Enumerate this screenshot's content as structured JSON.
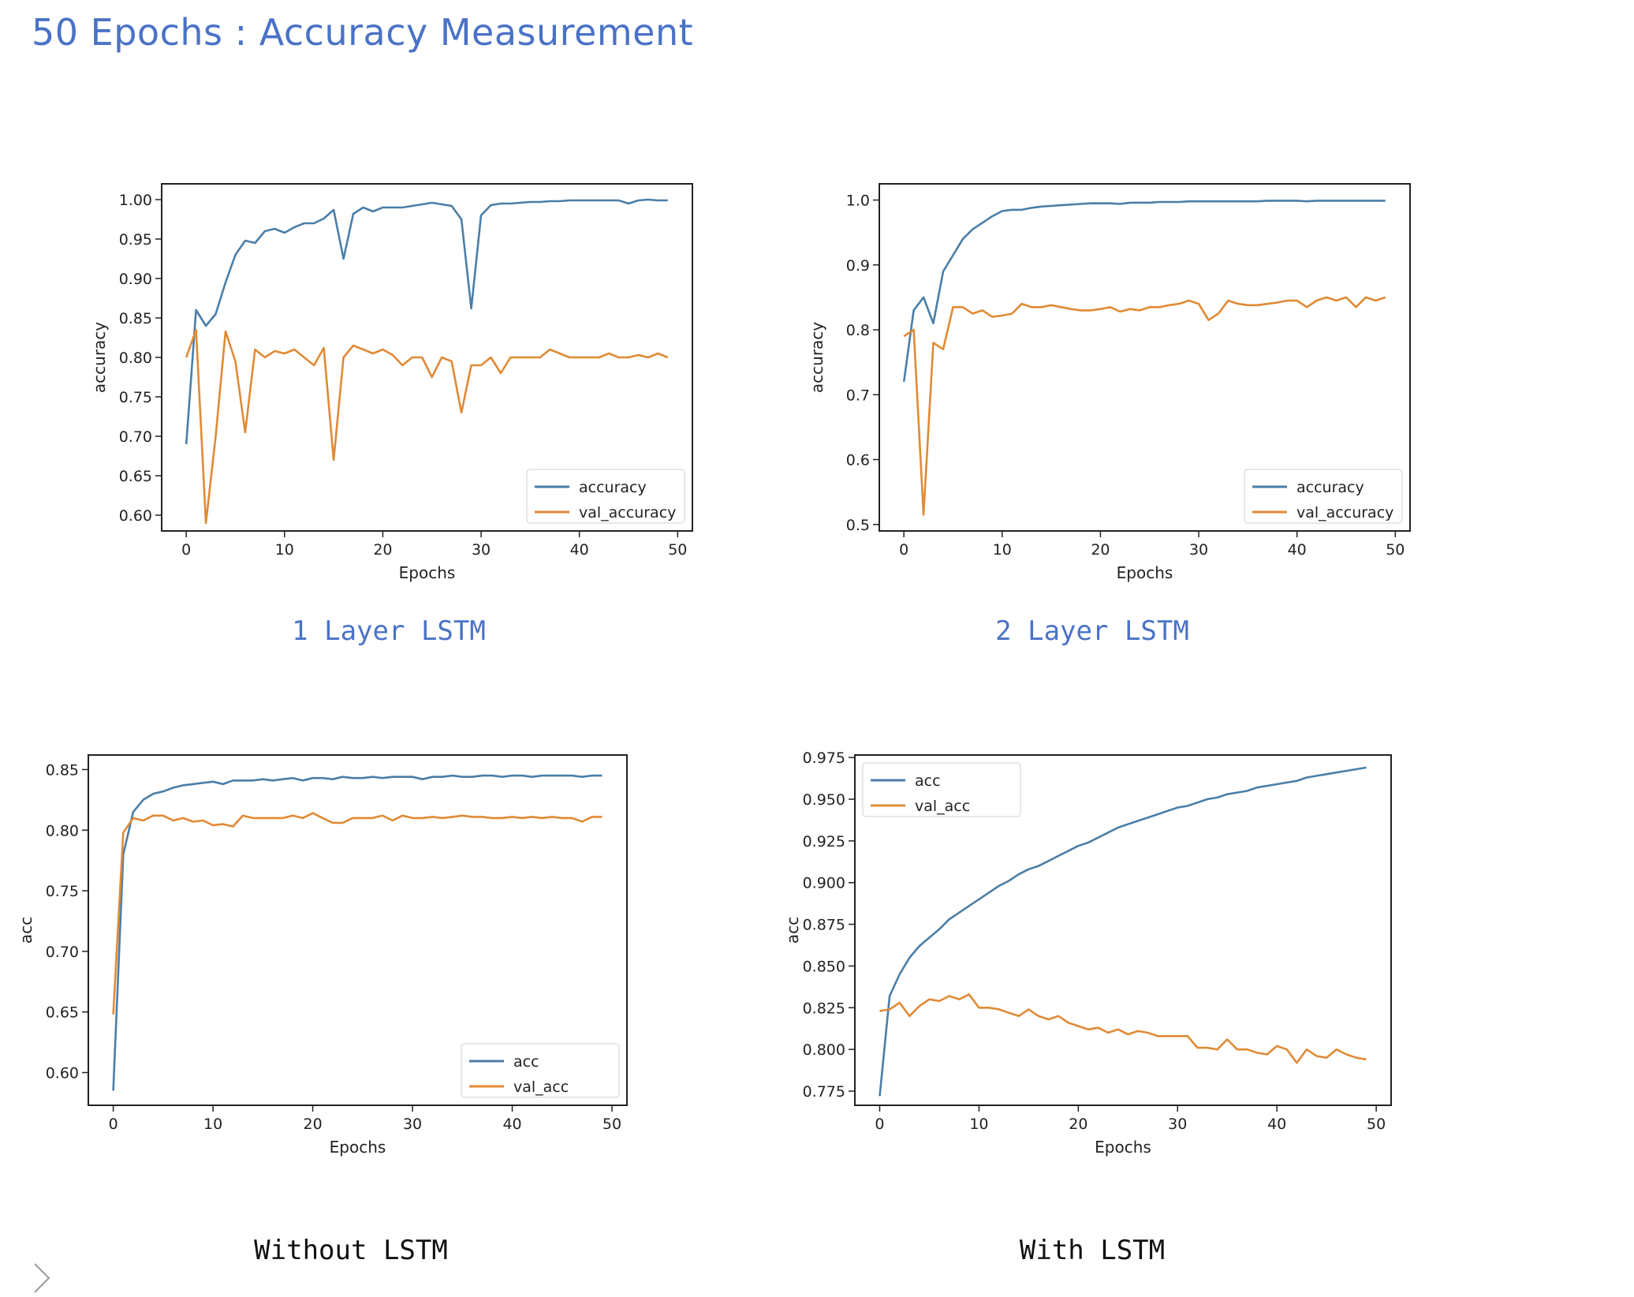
{
  "slide": {
    "title": "50 Epochs : Accuracy Measurement",
    "nav_icon": "chevron-right-icon"
  },
  "colors": {
    "title": "#4a72c6",
    "train": "#4a7ea8",
    "val": "#e08a35"
  },
  "captions": [
    "1 Layer LSTM",
    "2 Layer LSTM",
    "Without LSTM",
    "With LSTM"
  ],
  "chart_data": [
    {
      "type": "line",
      "xlabel": "Epochs",
      "ylabel": "accuracy",
      "xlim": [
        -2.5,
        51.5
      ],
      "ylim": [
        0.58,
        1.02
      ],
      "xticks": [
        0,
        10,
        20,
        30,
        40,
        50
      ],
      "yticks": [
        0.6,
        0.65,
        0.7,
        0.75,
        0.8,
        0.85,
        0.9,
        0.95,
        1.0
      ],
      "ytick_decimals": 2,
      "legend": "lower-right",
      "x": [
        0,
        1,
        2,
        3,
        4,
        5,
        6,
        7,
        8,
        9,
        10,
        11,
        12,
        13,
        14,
        15,
        16,
        17,
        18,
        19,
        20,
        21,
        22,
        23,
        24,
        25,
        26,
        27,
        28,
        29,
        30,
        31,
        32,
        33,
        34,
        35,
        36,
        37,
        38,
        39,
        40,
        41,
        42,
        43,
        44,
        45,
        46,
        47,
        48,
        49
      ],
      "series": [
        {
          "name": "accuracy",
          "color": "#4a7ea8",
          "values": [
            0.69,
            0.86,
            0.84,
            0.855,
            0.895,
            0.93,
            0.948,
            0.945,
            0.96,
            0.963,
            0.958,
            0.965,
            0.97,
            0.97,
            0.976,
            0.987,
            0.925,
            0.982,
            0.99,
            0.985,
            0.99,
            0.99,
            0.99,
            0.992,
            0.994,
            0.996,
            0.994,
            0.992,
            0.975,
            0.862,
            0.98,
            0.993,
            0.995,
            0.995,
            0.996,
            0.997,
            0.997,
            0.998,
            0.998,
            0.999,
            0.999,
            0.999,
            0.999,
            0.999,
            0.999,
            0.995,
            0.999,
            1.0,
            0.999,
            0.999
          ]
        },
        {
          "name": "val_accuracy",
          "color": "#e08a35",
          "values": [
            0.8,
            0.835,
            0.59,
            0.7,
            0.833,
            0.795,
            0.705,
            0.81,
            0.8,
            0.808,
            0.805,
            0.81,
            0.8,
            0.79,
            0.812,
            0.67,
            0.8,
            0.815,
            0.81,
            0.805,
            0.81,
            0.803,
            0.79,
            0.8,
            0.8,
            0.775,
            0.8,
            0.795,
            0.73,
            0.79,
            0.79,
            0.8,
            0.78,
            0.8,
            0.8,
            0.8,
            0.8,
            0.81,
            0.805,
            0.8,
            0.8,
            0.8,
            0.8,
            0.805,
            0.8,
            0.8,
            0.803,
            0.8,
            0.805,
            0.8
          ]
        }
      ]
    },
    {
      "type": "line",
      "xlabel": "Epochs",
      "ylabel": "accuracy",
      "xlim": [
        -2.5,
        51.5
      ],
      "ylim": [
        0.49,
        1.025
      ],
      "xticks": [
        0,
        10,
        20,
        30,
        40,
        50
      ],
      "yticks": [
        0.5,
        0.6,
        0.7,
        0.8,
        0.9,
        1.0
      ],
      "ytick_decimals": 1,
      "legend": "lower-right",
      "x": [
        0,
        1,
        2,
        3,
        4,
        5,
        6,
        7,
        8,
        9,
        10,
        11,
        12,
        13,
        14,
        15,
        16,
        17,
        18,
        19,
        20,
        21,
        22,
        23,
        24,
        25,
        26,
        27,
        28,
        29,
        30,
        31,
        32,
        33,
        34,
        35,
        36,
        37,
        38,
        39,
        40,
        41,
        42,
        43,
        44,
        45,
        46,
        47,
        48,
        49
      ],
      "series": [
        {
          "name": "accuracy",
          "color": "#4a7ea8",
          "values": [
            0.72,
            0.83,
            0.85,
            0.81,
            0.89,
            0.915,
            0.94,
            0.955,
            0.965,
            0.975,
            0.983,
            0.985,
            0.985,
            0.988,
            0.99,
            0.991,
            0.992,
            0.993,
            0.994,
            0.995,
            0.995,
            0.995,
            0.994,
            0.996,
            0.996,
            0.996,
            0.997,
            0.997,
            0.997,
            0.998,
            0.998,
            0.998,
            0.998,
            0.998,
            0.998,
            0.998,
            0.998,
            0.999,
            0.999,
            0.999,
            0.999,
            0.998,
            0.999,
            0.999,
            0.999,
            0.999,
            0.999,
            0.999,
            0.999,
            0.999
          ]
        },
        {
          "name": "val_accuracy",
          "color": "#e08a35",
          "values": [
            0.79,
            0.8,
            0.515,
            0.78,
            0.77,
            0.835,
            0.835,
            0.825,
            0.83,
            0.82,
            0.822,
            0.825,
            0.84,
            0.835,
            0.835,
            0.838,
            0.835,
            0.832,
            0.83,
            0.83,
            0.832,
            0.835,
            0.828,
            0.832,
            0.83,
            0.835,
            0.835,
            0.838,
            0.84,
            0.845,
            0.84,
            0.815,
            0.825,
            0.845,
            0.84,
            0.838,
            0.838,
            0.84,
            0.842,
            0.845,
            0.845,
            0.835,
            0.845,
            0.85,
            0.845,
            0.85,
            0.835,
            0.85,
            0.845,
            0.85
          ]
        }
      ]
    },
    {
      "type": "line",
      "xlabel": "Epochs",
      "ylabel": "acc",
      "xlim": [
        -2.5,
        51.5
      ],
      "ylim": [
        0.573,
        0.862
      ],
      "xticks": [
        0,
        10,
        20,
        30,
        40,
        50
      ],
      "yticks": [
        0.6,
        0.65,
        0.7,
        0.75,
        0.8,
        0.85
      ],
      "ytick_decimals": 2,
      "legend": "lower-right",
      "x": [
        0,
        1,
        2,
        3,
        4,
        5,
        6,
        7,
        8,
        9,
        10,
        11,
        12,
        13,
        14,
        15,
        16,
        17,
        18,
        19,
        20,
        21,
        22,
        23,
        24,
        25,
        26,
        27,
        28,
        29,
        30,
        31,
        32,
        33,
        34,
        35,
        36,
        37,
        38,
        39,
        40,
        41,
        42,
        43,
        44,
        45,
        46,
        47,
        48,
        49
      ],
      "series": [
        {
          "name": "acc",
          "color": "#4a7ea8",
          "values": [
            0.585,
            0.78,
            0.815,
            0.825,
            0.83,
            0.832,
            0.835,
            0.837,
            0.838,
            0.839,
            0.84,
            0.838,
            0.841,
            0.841,
            0.841,
            0.842,
            0.841,
            0.842,
            0.843,
            0.841,
            0.843,
            0.843,
            0.842,
            0.844,
            0.843,
            0.843,
            0.844,
            0.843,
            0.844,
            0.844,
            0.844,
            0.842,
            0.844,
            0.844,
            0.845,
            0.844,
            0.844,
            0.845,
            0.845,
            0.844,
            0.845,
            0.845,
            0.844,
            0.845,
            0.845,
            0.845,
            0.845,
            0.844,
            0.845,
            0.845
          ]
        },
        {
          "name": "val_acc",
          "color": "#e08a35",
          "values": [
            0.648,
            0.798,
            0.81,
            0.808,
            0.812,
            0.812,
            0.808,
            0.81,
            0.807,
            0.808,
            0.804,
            0.805,
            0.803,
            0.812,
            0.81,
            0.81,
            0.81,
            0.81,
            0.812,
            0.81,
            0.814,
            0.81,
            0.806,
            0.806,
            0.81,
            0.81,
            0.81,
            0.812,
            0.808,
            0.812,
            0.81,
            0.81,
            0.811,
            0.81,
            0.811,
            0.812,
            0.811,
            0.811,
            0.81,
            0.81,
            0.811,
            0.81,
            0.811,
            0.81,
            0.811,
            0.81,
            0.81,
            0.807,
            0.811,
            0.811
          ]
        }
      ]
    },
    {
      "type": "line",
      "xlabel": "Epochs",
      "ylabel": "acc",
      "xlim": [
        -2.5,
        51.5
      ],
      "ylim": [
        0.7665,
        0.9765
      ],
      "xticks": [
        0,
        10,
        20,
        30,
        40,
        50
      ],
      "yticks": [
        0.775,
        0.8,
        0.825,
        0.85,
        0.875,
        0.9,
        0.925,
        0.95,
        0.975
      ],
      "ytick_decimals": 3,
      "legend": "upper-left",
      "x": [
        0,
        1,
        2,
        3,
        4,
        5,
        6,
        7,
        8,
        9,
        10,
        11,
        12,
        13,
        14,
        15,
        16,
        17,
        18,
        19,
        20,
        21,
        22,
        23,
        24,
        25,
        26,
        27,
        28,
        29,
        30,
        31,
        32,
        33,
        34,
        35,
        36,
        37,
        38,
        39,
        40,
        41,
        42,
        43,
        44,
        45,
        46,
        47,
        48,
        49
      ],
      "series": [
        {
          "name": "acc",
          "color": "#4a7ea8",
          "values": [
            0.772,
            0.832,
            0.845,
            0.855,
            0.862,
            0.867,
            0.872,
            0.878,
            0.882,
            0.886,
            0.89,
            0.894,
            0.898,
            0.901,
            0.905,
            0.908,
            0.91,
            0.913,
            0.916,
            0.919,
            0.922,
            0.924,
            0.927,
            0.93,
            0.933,
            0.935,
            0.937,
            0.939,
            0.941,
            0.943,
            0.945,
            0.946,
            0.948,
            0.95,
            0.951,
            0.953,
            0.954,
            0.955,
            0.957,
            0.958,
            0.959,
            0.96,
            0.961,
            0.963,
            0.964,
            0.965,
            0.966,
            0.967,
            0.968,
            0.969
          ]
        },
        {
          "name": "val_acc",
          "color": "#e08a35",
          "values": [
            0.823,
            0.824,
            0.828,
            0.82,
            0.826,
            0.83,
            0.829,
            0.832,
            0.83,
            0.833,
            0.825,
            0.825,
            0.824,
            0.822,
            0.82,
            0.824,
            0.82,
            0.818,
            0.82,
            0.816,
            0.814,
            0.812,
            0.813,
            0.81,
            0.812,
            0.809,
            0.811,
            0.81,
            0.808,
            0.808,
            0.808,
            0.808,
            0.801,
            0.801,
            0.8,
            0.806,
            0.8,
            0.8,
            0.798,
            0.797,
            0.802,
            0.8,
            0.792,
            0.8,
            0.796,
            0.795,
            0.8,
            0.797,
            0.795,
            0.794
          ]
        }
      ]
    }
  ]
}
